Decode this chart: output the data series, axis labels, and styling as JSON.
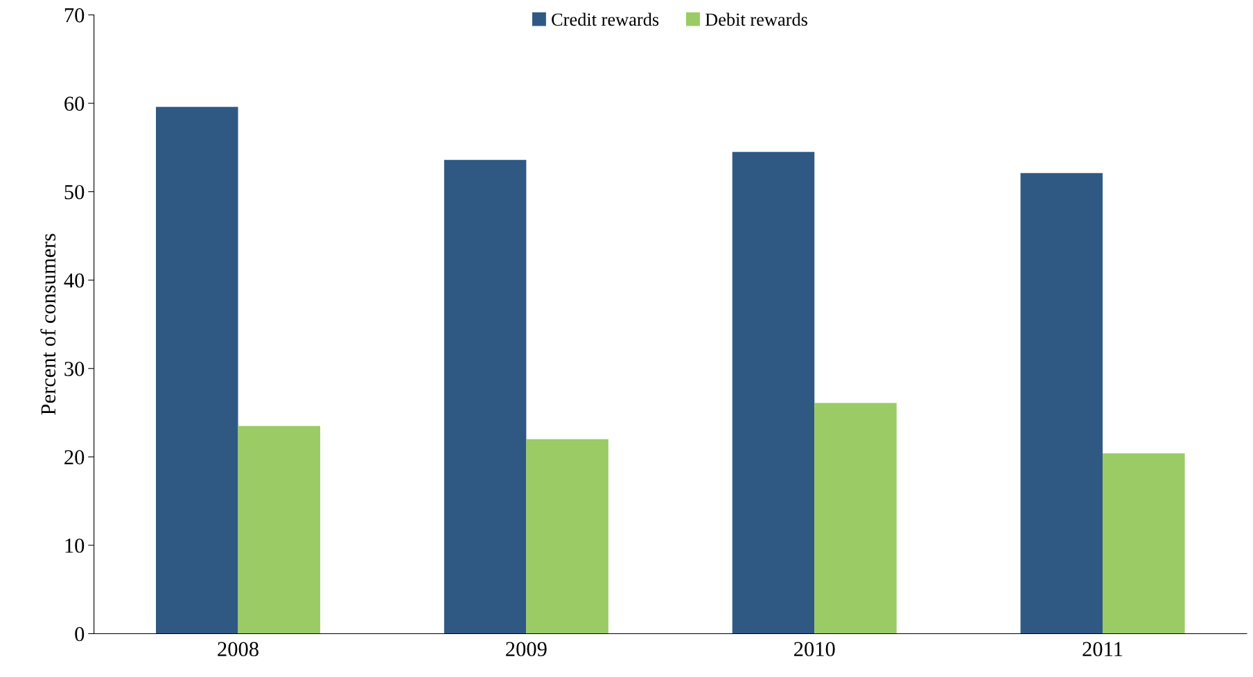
{
  "chart_data": {
    "type": "bar",
    "ylabel": "Percent of consumers",
    "categories": [
      "2008",
      "2009",
      "2010",
      "2011"
    ],
    "series": [
      {
        "name": "Credit rewards",
        "color": "#2f5983",
        "values": [
          59.6,
          53.6,
          54.5,
          52.1
        ]
      },
      {
        "name": "Debit rewards",
        "color": "#9acb65",
        "values": [
          23.5,
          22.0,
          26.1,
          20.4
        ]
      }
    ],
    "ylim": [
      0,
      70
    ],
    "yticks": [
      0,
      10,
      20,
      30,
      40,
      50,
      60,
      70
    ],
    "grid": false,
    "legend": "top"
  }
}
